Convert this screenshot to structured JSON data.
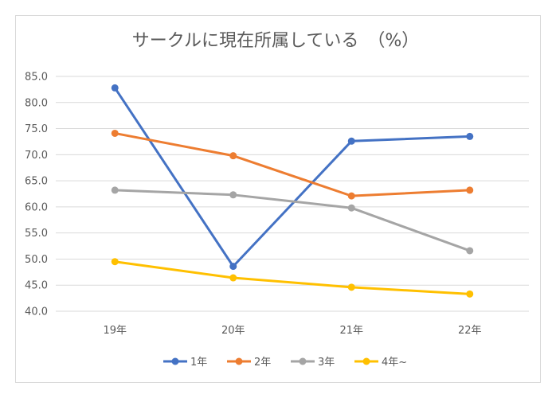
{
  "chart_data": {
    "type": "line",
    "title": "サークルに現在所属している　（%）",
    "xlabel": "",
    "ylabel": "",
    "categories": [
      "19年",
      "20年",
      "21年",
      "22年"
    ],
    "ylim": [
      40.0,
      85.0
    ],
    "yticks": [
      "85.0",
      "80.0",
      "75.0",
      "70.0",
      "65.0",
      "60.0",
      "55.0",
      "50.0",
      "45.0",
      "40.0"
    ],
    "grid": true,
    "legend_position": "bottom",
    "series": [
      {
        "name": "1年",
        "color": "#4472C4",
        "values": [
          82.8,
          48.6,
          72.6,
          73.5
        ]
      },
      {
        "name": "2年",
        "color": "#ED7D31",
        "values": [
          74.1,
          69.8,
          62.1,
          63.2
        ]
      },
      {
        "name": "3年",
        "color": "#A5A5A5",
        "values": [
          63.2,
          62.3,
          59.8,
          51.6
        ]
      },
      {
        "name": "4年~",
        "color": "#FFC000",
        "values": [
          49.5,
          46.4,
          44.6,
          43.3
        ]
      }
    ]
  }
}
